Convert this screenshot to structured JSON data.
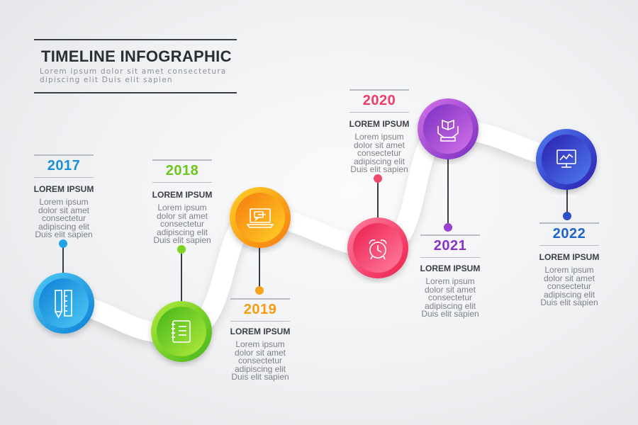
{
  "header": {
    "title": "TIMELINE INFOGRAPHIC",
    "subtitle": "Lorem ipsum dolor sit amet consectetura\ndipiscing elit Duis elit sapien"
  },
  "milestones": [
    {
      "year": "2017",
      "label": "LOREM IPSUM",
      "text": "Lorem ipsum\ndolor sit amet\nconsectetur\nadipiscing elit\nDuis elit sapien",
      "color": "#1a8fd9",
      "icon": "pencil-ruler-icon"
    },
    {
      "year": "2018",
      "label": "LOREM IPSUM",
      "text": "Lorem ipsum\ndolor sit amet\nconsectetur\nadipiscing elit\nDuis elit sapien",
      "color": "#6cc51f",
      "icon": "notebook-icon"
    },
    {
      "year": "2019",
      "label": "LOREM IPSUM",
      "text": "Lorem ipsum\ndolor sit amet\nconsectetur\nadipiscing elit\nDuis elit sapien",
      "color": "#f59c0f",
      "icon": "laptop-chat-icon"
    },
    {
      "year": "2020",
      "label": "LOREM IPSUM",
      "text": "Lorem ipsum\ndolor sit amet\nconsectetur\nadipiscing elit\nDuis elit sapien",
      "color": "#ef3d68",
      "icon": "alarm-clock-icon"
    },
    {
      "year": "2021",
      "label": "LOREM IPSUM",
      "text": "Lorem ipsum\ndolor sit amet\nconsectetur\nadipiscing elit\nDuis elit sapien",
      "color": "#8a34c7",
      "icon": "hands-book-icon"
    },
    {
      "year": "2022",
      "label": "LOREM IPSUM",
      "text": "Lorem ipsum\ndolor sit amet\nconsectetur\nadipiscing elit\nDuis elit sapien",
      "color": "#1e63c9",
      "icon": "monitor-chart-icon"
    }
  ]
}
